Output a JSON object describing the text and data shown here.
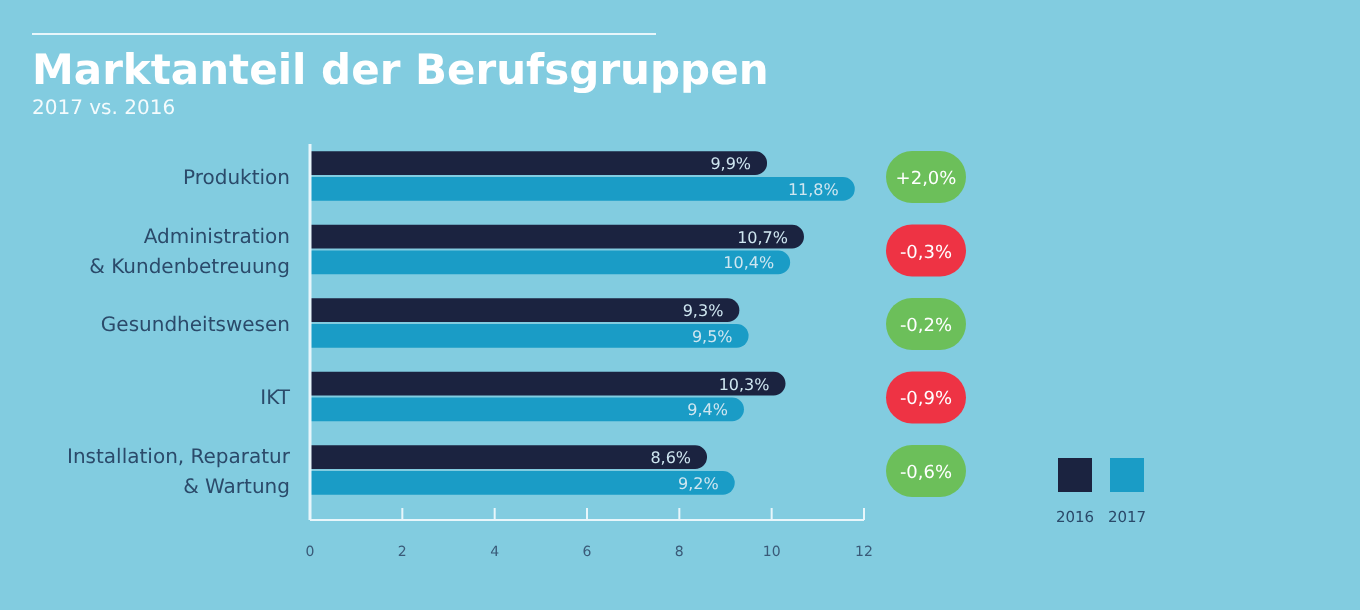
{
  "chart_data": {
    "type": "bar",
    "orientation": "horizontal",
    "title": "Marktanteil der Berufsgruppen",
    "subtitle": "2017 vs. 2016",
    "categories": [
      "Produktion",
      "Administration\n& Kundenbetreuung",
      "Gesundheitswesen",
      "IKT",
      "Installation, Reparatur\n& Wartung"
    ],
    "series": [
      {
        "name": "2016",
        "color": "#1b2340",
        "values": [
          9.9,
          10.7,
          9.3,
          10.3,
          8.6
        ],
        "value_labels": [
          "9,9%",
          "10,7%",
          "9,3%",
          "10,3%",
          "8,6%"
        ]
      },
      {
        "name": "2017",
        "color": "#1a9cc6",
        "values": [
          11.8,
          10.4,
          9.5,
          9.4,
          9.2
        ],
        "value_labels": [
          "11,8%",
          "10,4%",
          "9,5%",
          "9,4%",
          "9,2%"
        ]
      }
    ],
    "xlim": [
      0,
      12
    ],
    "xticks": [
      0,
      2,
      4,
      6,
      8,
      10,
      12
    ],
    "legend": "bottom right",
    "grid": false,
    "annotations": [
      "+2,0%",
      "-0,3%",
      "-0,2%",
      "-0,9%",
      "-0,6%"
    ]
  }
}
